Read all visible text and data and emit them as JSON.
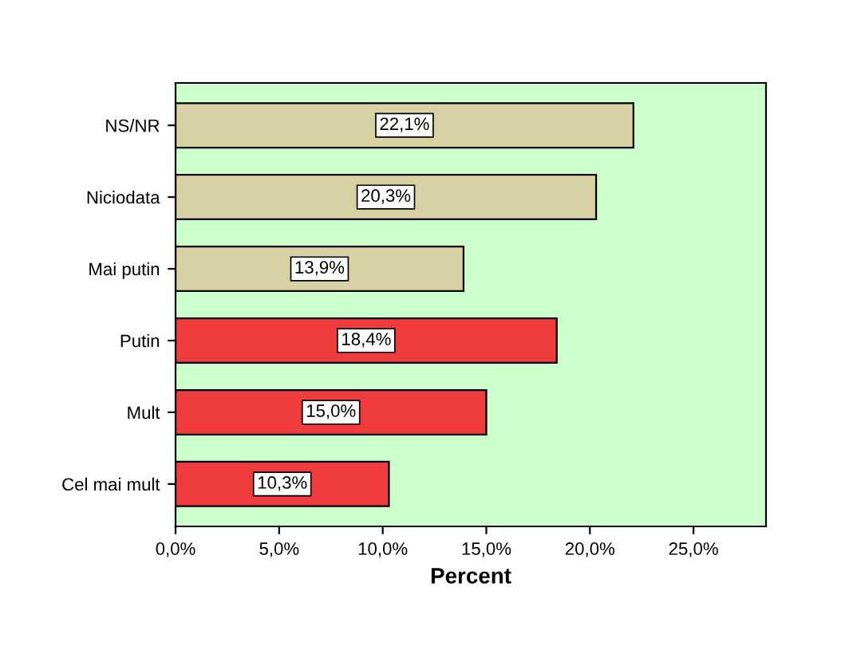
{
  "chart_data": {
    "type": "bar",
    "orientation": "horizontal",
    "xlabel": "Percent",
    "categories": [
      "NS/NR",
      "Niciodata",
      "Mai putin",
      "Putin",
      "Mult",
      "Cel mai mult"
    ],
    "values": [
      22.1,
      20.3,
      13.9,
      18.4,
      15.0,
      10.3
    ],
    "colors": [
      "#d8d1a3",
      "#d8d1a3",
      "#d8d1a3",
      "#f03c3c",
      "#f03c3c",
      "#f03c3c"
    ],
    "value_labels": [
      "22,1%",
      "20,3%",
      "13,9%",
      "18,4%",
      "15,0%",
      "10,3%"
    ],
    "xlim": [
      0,
      28.5
    ],
    "xticks": [
      {
        "value": 0,
        "label": "0,0%"
      },
      {
        "value": 5,
        "label": "5,0%"
      },
      {
        "value": 10,
        "label": "10,0%"
      },
      {
        "value": 15,
        "label": "15,0%"
      },
      {
        "value": 20,
        "label": "20,0%"
      },
      {
        "value": 25,
        "label": "25,0%"
      }
    ],
    "grid": false,
    "legend": false
  }
}
